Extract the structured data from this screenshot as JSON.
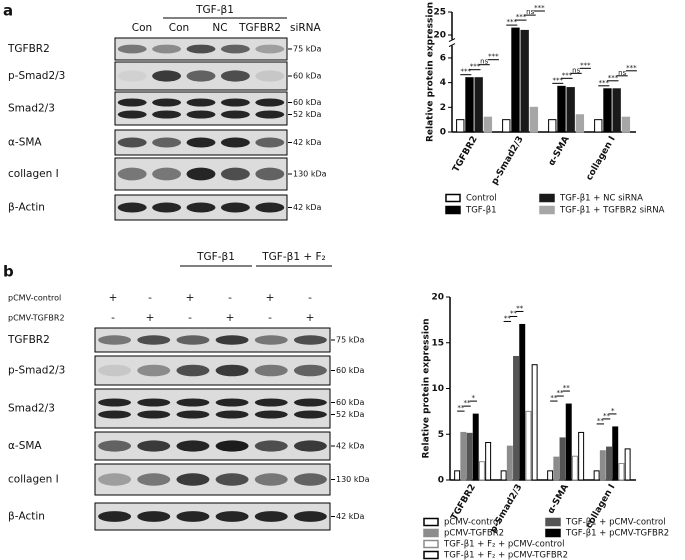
{
  "panel_a": {
    "label": "a",
    "group": "TGF-β1",
    "lanes": [
      "Con",
      "Con",
      "NC",
      "TGFBR2"
    ],
    "lane_suffix": "siRNA",
    "rows": [
      {
        "name": "TGFBR2",
        "kda": [
          "75 kDa"
        ]
      },
      {
        "name": "p-Smad2/3",
        "kda": [
          "60 kDa"
        ]
      },
      {
        "name": "Smad2/3",
        "kda": [
          "60 kDa",
          "52 kDa"
        ]
      },
      {
        "name": "α-SMA",
        "kda": [
          "42 kDa"
        ]
      },
      {
        "name": "collagen I",
        "kda": [
          "130 kDa"
        ]
      },
      {
        "name": "β-Actin",
        "kda": [
          "42 kDa"
        ]
      }
    ]
  },
  "panel_b": {
    "label": "b",
    "groups": [
      "TGF-β1",
      "TGF-β1 + F₂"
    ],
    "conditions": [
      {
        "name": "pCMV-control",
        "signs": [
          "+",
          "-",
          "+",
          "-",
          "+",
          "-"
        ]
      },
      {
        "name": "pCMV-TGFBR2",
        "signs": [
          "-",
          "+",
          "-",
          "+",
          "-",
          "+"
        ]
      }
    ],
    "rows": [
      {
        "name": "TGFBR2",
        "kda": [
          "75 kDa"
        ]
      },
      {
        "name": "p-Smad2/3",
        "kda": [
          "60 kDa"
        ]
      },
      {
        "name": "Smad2/3",
        "kda": [
          "60 kDa",
          "52 kDa"
        ]
      },
      {
        "name": "α-SMA",
        "kda": [
          "42 kDa"
        ]
      },
      {
        "name": "collagen I",
        "kda": [
          "130 kDa"
        ]
      },
      {
        "name": "β-Actin",
        "kda": [
          "42 kDa"
        ]
      }
    ]
  },
  "chart_data": [
    {
      "type": "bar",
      "y_label": "Relative protein expression",
      "categories": [
        "TGFBR2",
        "p-Smad2/3",
        "α-SMA",
        "collagen I"
      ],
      "ylim": [
        0,
        25
      ],
      "axis_break": [
        7,
        19
      ],
      "yticks": [
        0,
        2,
        4,
        6,
        20,
        25
      ],
      "series": [
        {
          "name": "Control",
          "color": "#ffffff",
          "edgecolor": "#000000",
          "values": [
            1,
            1,
            1,
            1
          ]
        },
        {
          "name": "TGF-β1",
          "color": "#000000",
          "edgecolor": "#000000",
          "values": [
            4.4,
            21.5,
            3.7,
            3.5
          ]
        },
        {
          "name": "TGF-β1 + NC siRNA",
          "color": "#1a1a1a",
          "edgecolor": "#1a1a1a",
          "values": [
            4.4,
            21,
            3.6,
            3.5
          ]
        },
        {
          "name": "TGF-β1 + TGFBR2 siRNA",
          "color": "#a6a6a6",
          "edgecolor": "#a6a6a6",
          "values": [
            1.2,
            2,
            1.4,
            1.2
          ]
        }
      ],
      "significance": [
        [
          "***",
          "***",
          "ns",
          "***"
        ],
        [
          "***",
          "***",
          "ns",
          "***"
        ],
        [
          "***",
          "***",
          "ns",
          "***"
        ],
        [
          "***",
          "***",
          "ns",
          "***"
        ]
      ]
    },
    {
      "type": "bar",
      "y_label": "Relative protein expression",
      "categories": [
        "TGFBR2",
        "p-Smad2/3",
        "α-SMA",
        "collagen I"
      ],
      "ylim": [
        0,
        20
      ],
      "yticks": [
        0,
        5,
        10,
        15,
        20
      ],
      "series": [
        {
          "name": "pCMV-control",
          "color": "#ffffff",
          "edgecolor": "#000000",
          "values": [
            1,
            1,
            1,
            1
          ]
        },
        {
          "name": "pCMV-TGFBR2",
          "color": "#8c8c8c",
          "edgecolor": "#8c8c8c",
          "values": [
            5.2,
            3.7,
            2.5,
            3.2
          ]
        },
        {
          "name": "TGF-β1 + pCMV-control",
          "color": "#555555",
          "edgecolor": "#555555",
          "values": [
            5.1,
            13.5,
            4.6,
            3.6
          ]
        },
        {
          "name": "TGF-β1 + pCMV-TGFBR2",
          "color": "#000000",
          "edgecolor": "#000000",
          "values": [
            7.2,
            17,
            8.3,
            5.8
          ]
        },
        {
          "name": "TGF-β1 + F₂ + pCMV-control",
          "color": "#ffffff",
          "edgecolor": "#8c8c8c",
          "values": [
            2,
            7.5,
            2.6,
            1.8
          ]
        },
        {
          "name": "TGF-β1 + F₂ + pCMV-TGFBR2",
          "color": "#ffffff",
          "edgecolor": "#000000",
          "values": [
            4.1,
            12.6,
            5.2,
            3.4
          ]
        }
      ],
      "significance": [
        [
          "**",
          "**",
          "*"
        ],
        [
          "**",
          "**",
          "**"
        ],
        [
          "**",
          "**",
          "**"
        ],
        [
          "**",
          "**",
          "*"
        ]
      ]
    }
  ]
}
